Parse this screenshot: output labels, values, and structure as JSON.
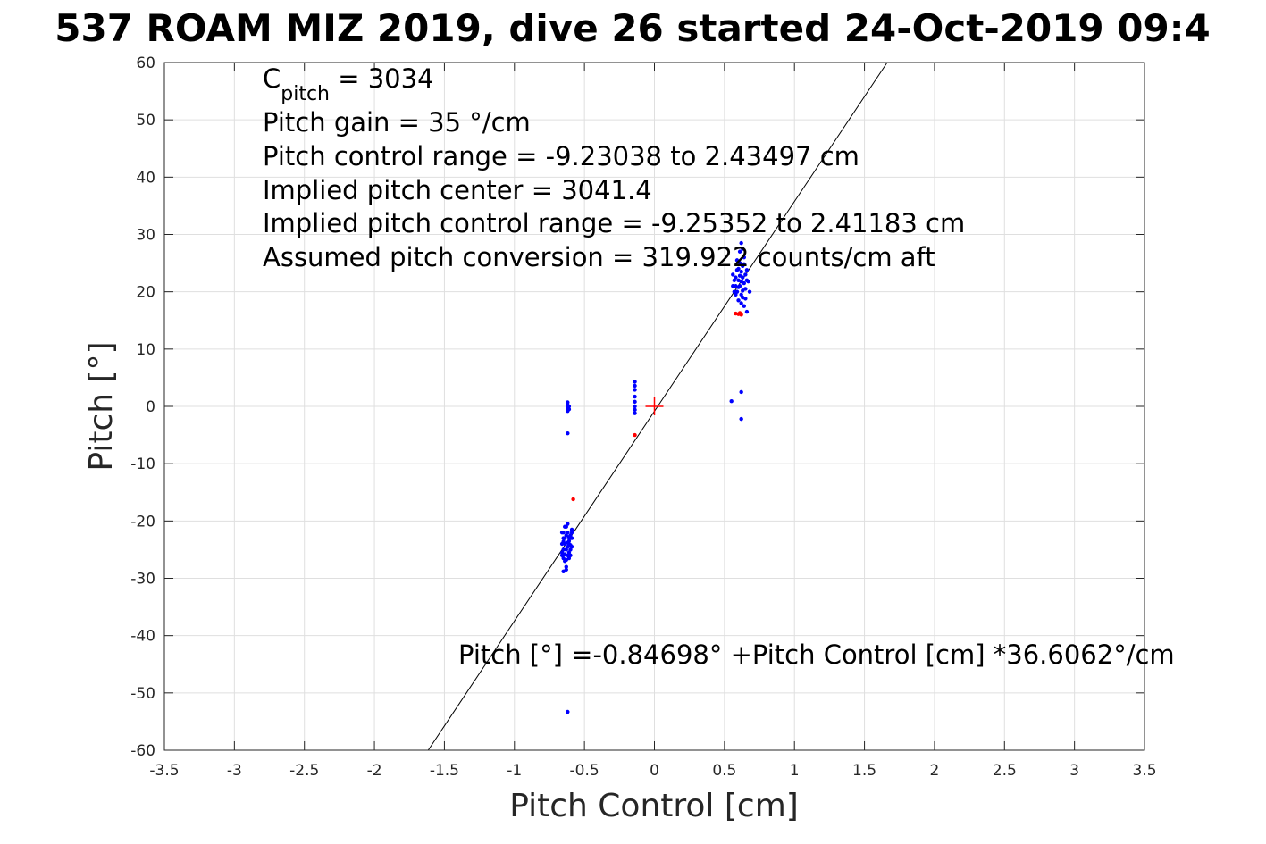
{
  "chart_data": {
    "type": "scatter",
    "title": "537 ROAM MIZ 2019, dive 26 started 24-Oct-2019 09:4",
    "xlabel": "Pitch Control [cm]",
    "ylabel": "Pitch [°]",
    "xlim": [
      -3.5,
      3.5
    ],
    "ylim": [
      -60,
      60
    ],
    "xticks": [
      "-3.5",
      "-3",
      "-2.5",
      "-2",
      "-1.5",
      "-1",
      "-0.5",
      "0",
      "0.5",
      "1",
      "1.5",
      "2",
      "2.5",
      "3",
      "3.5"
    ],
    "yticks": [
      "60",
      "50",
      "40",
      "30",
      "20",
      "10",
      "0",
      "-10",
      "-20",
      "-30",
      "-40",
      "-50",
      "-60"
    ],
    "grid": true,
    "annotations": {
      "c_pitch_symbol": "C",
      "c_pitch_sub": "pitch",
      "c_pitch_value": " = 3034",
      "line2": "Pitch gain = 35 °/cm",
      "line3": "Pitch control range = -9.23038 to 2.43497 cm",
      "line4": "Implied pitch center = 3041.4",
      "line5": "Implied pitch control range = -9.25352 to 2.41183 cm",
      "line6": "Assumed pitch conversion = 319.922 counts/cm aft",
      "fit_equation": "Pitch [°] =-0.84698° +Pitch Control [cm] *36.6062°/cm"
    },
    "fit_line": {
      "intercept": -0.84698,
      "slope": 36.6062,
      "color": "#000000"
    },
    "center_marker": {
      "x": 0,
      "y": 0,
      "color": "#ff0000"
    },
    "series": [
      {
        "color": "#0000ff",
        "points": [
          [
            -0.66,
            -22
          ],
          [
            -0.65,
            -23
          ],
          [
            -0.64,
            -24
          ],
          [
            -0.63,
            -25
          ],
          [
            -0.62,
            -26
          ],
          [
            -0.61,
            -23.5
          ],
          [
            -0.6,
            -22.5
          ],
          [
            -0.59,
            -24.5
          ],
          [
            -0.66,
            -25.5
          ],
          [
            -0.65,
            -26.5
          ],
          [
            -0.64,
            -27
          ],
          [
            -0.63,
            -21
          ],
          [
            -0.62,
            -22
          ],
          [
            -0.61,
            -24
          ],
          [
            -0.6,
            -25
          ],
          [
            -0.59,
            -23
          ],
          [
            -0.66,
            -24
          ],
          [
            -0.65,
            -25
          ],
          [
            -0.64,
            -23
          ],
          [
            -0.63,
            -22.5
          ],
          [
            -0.62,
            -24.5
          ],
          [
            -0.61,
            -25.5
          ],
          [
            -0.6,
            -26
          ],
          [
            -0.59,
            -21.5
          ],
          [
            -0.66,
            -26
          ],
          [
            -0.65,
            -22
          ],
          [
            -0.64,
            -21
          ],
          [
            -0.63,
            -28.5
          ],
          [
            -0.62,
            -20.5
          ],
          [
            -0.61,
            -26.5
          ],
          [
            -0.6,
            -23
          ],
          [
            -0.59,
            -22
          ],
          [
            -0.65,
            -28.8
          ],
          [
            -0.63,
            -28
          ],
          [
            -0.64,
            -25.8
          ],
          [
            -0.62,
            -23.8
          ],
          [
            -0.61,
            -22.8
          ],
          [
            -0.6,
            -24.2
          ],
          [
            -0.65,
            -23.6
          ],
          [
            -0.63,
            -26.8
          ],
          [
            -0.62,
            0.7
          ],
          [
            -0.62,
            0.2
          ],
          [
            -0.62,
            -0.3
          ],
          [
            -0.62,
            -0.8
          ],
          [
            -0.61,
            -0.5
          ],
          [
            -0.61,
            0.0
          ],
          [
            -0.62,
            -4.7
          ],
          [
            -0.62,
            -53.3
          ],
          [
            -0.14,
            4.3
          ],
          [
            -0.14,
            3.6
          ],
          [
            -0.14,
            2.9
          ],
          [
            -0.14,
            1.7
          ],
          [
            -0.14,
            0.8
          ],
          [
            -0.14,
            0.0
          ],
          [
            -0.14,
            -0.6
          ],
          [
            -0.14,
            -1.2
          ],
          [
            0.56,
            23
          ],
          [
            0.57,
            22
          ],
          [
            0.58,
            21
          ],
          [
            0.59,
            20
          ],
          [
            0.6,
            24
          ],
          [
            0.61,
            25
          ],
          [
            0.62,
            23.5
          ],
          [
            0.63,
            22.5
          ],
          [
            0.64,
            21.5
          ],
          [
            0.65,
            20.5
          ],
          [
            0.56,
            21
          ],
          [
            0.57,
            20
          ],
          [
            0.58,
            22.5
          ],
          [
            0.59,
            23.8
          ],
          [
            0.6,
            22
          ],
          [
            0.61,
            21
          ],
          [
            0.62,
            19.5
          ],
          [
            0.63,
            24.5
          ],
          [
            0.64,
            26
          ],
          [
            0.65,
            23
          ],
          [
            0.6,
            18.5
          ],
          [
            0.62,
            18
          ],
          [
            0.64,
            17.5
          ],
          [
            0.66,
            16.5
          ],
          [
            0.61,
            27
          ],
          [
            0.62,
            28.5
          ],
          [
            0.63,
            27.5
          ],
          [
            0.66,
            22
          ],
          [
            0.68,
            20
          ],
          [
            0.67,
            21.8
          ],
          [
            0.59,
            25.5
          ],
          [
            0.63,
            19
          ],
          [
            0.65,
            18.8
          ],
          [
            0.58,
            19.5
          ],
          [
            0.61,
            22.8
          ],
          [
            0.64,
            24.8
          ],
          [
            0.6,
            20.8
          ],
          [
            0.62,
            21.8
          ],
          [
            0.63,
            20.2
          ],
          [
            0.66,
            23.8
          ],
          [
            0.55,
            0.9
          ],
          [
            0.62,
            2.5
          ],
          [
            0.62,
            -2.2
          ]
        ]
      },
      {
        "color": "#ff0000",
        "points": [
          [
            0.58,
            16.2
          ],
          [
            0.6,
            16.1
          ],
          [
            0.61,
            16.3
          ],
          [
            0.62,
            16.0
          ],
          [
            -0.58,
            -16.2
          ],
          [
            -0.14,
            -5.0
          ]
        ]
      }
    ]
  }
}
